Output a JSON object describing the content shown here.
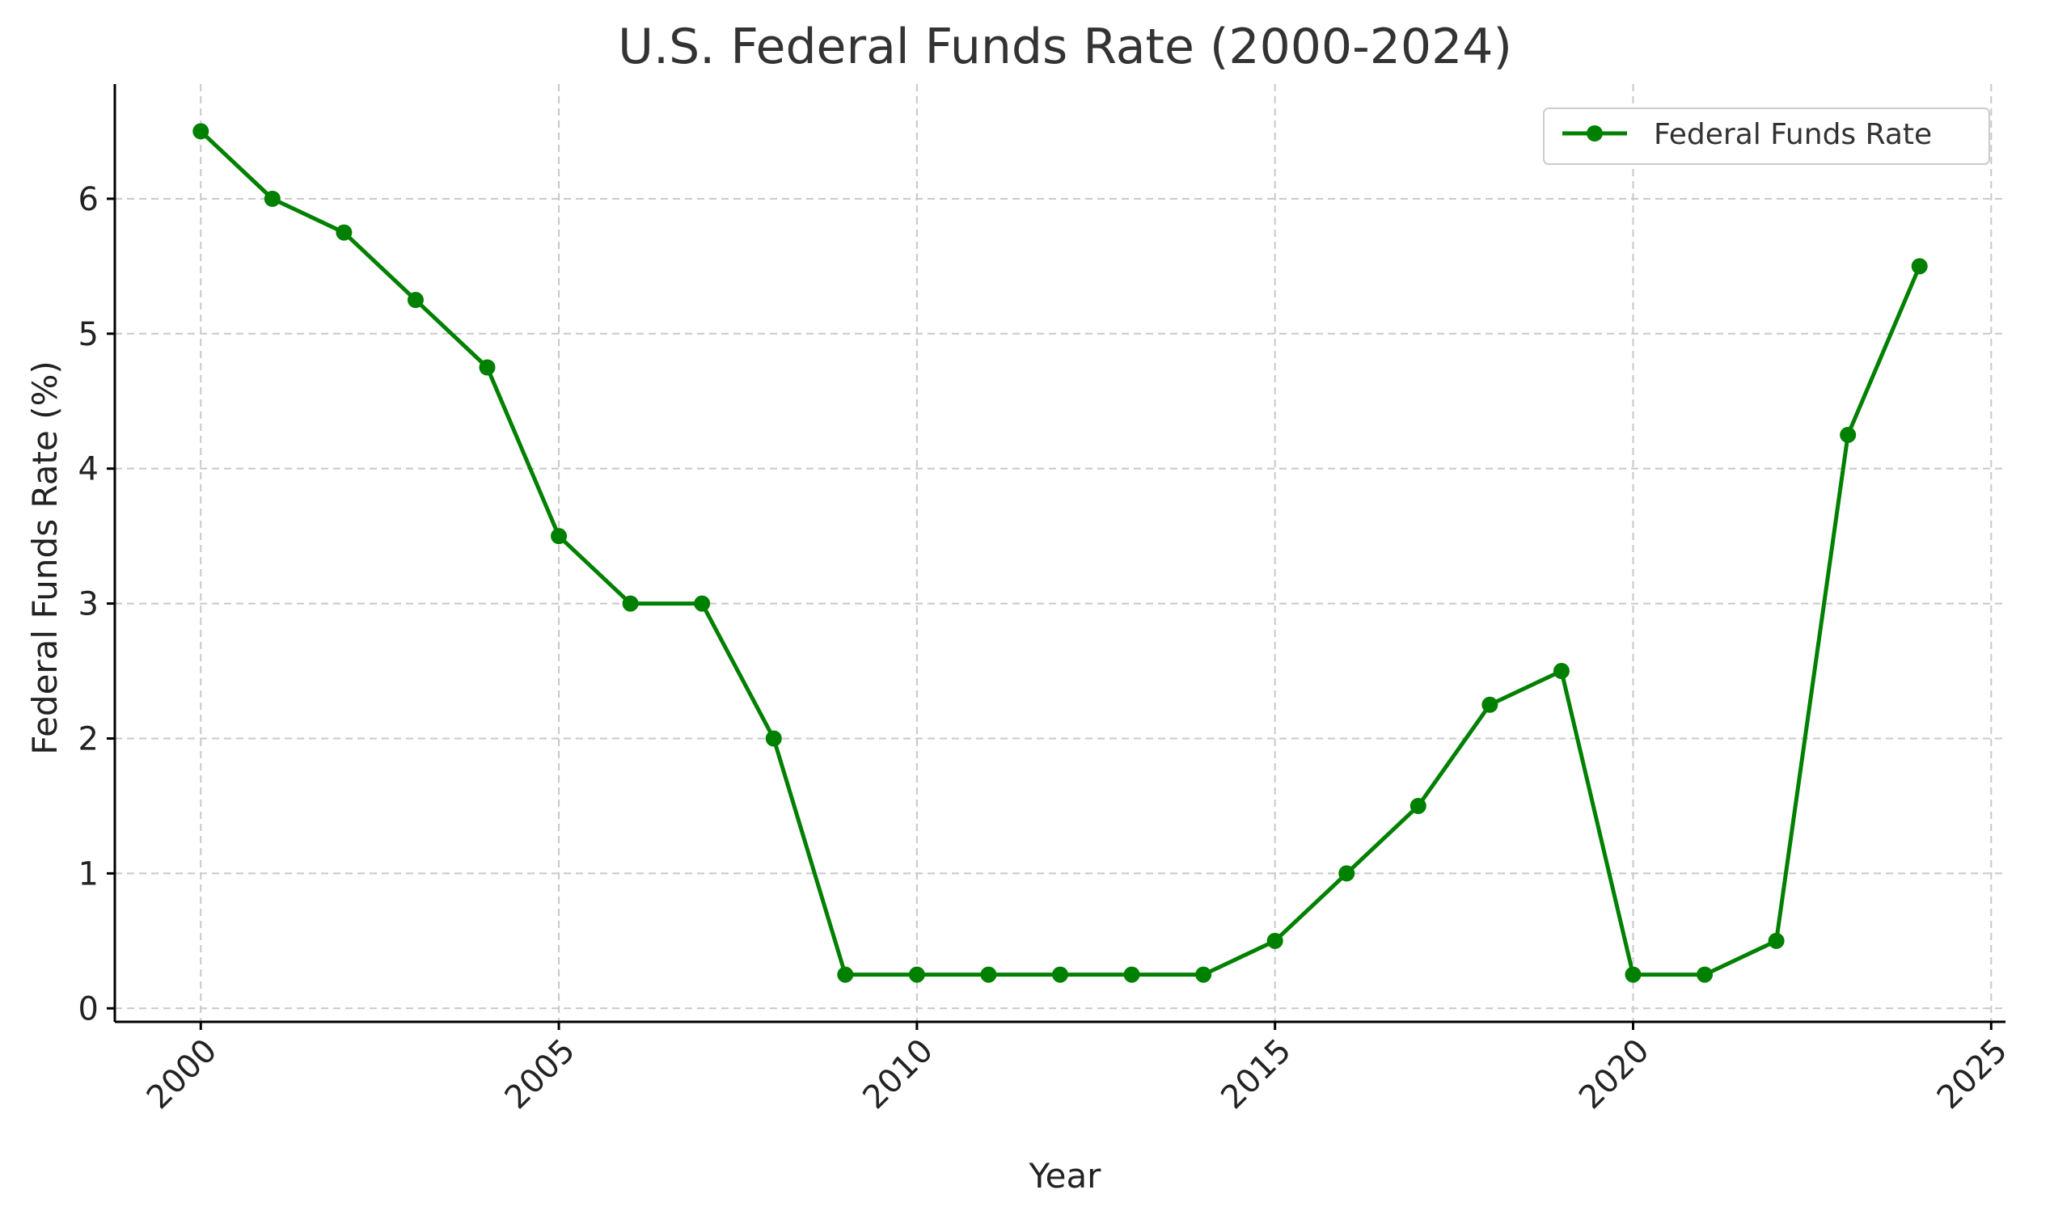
{
  "chart_data": {
    "type": "line",
    "title": "U.S. Federal Funds Rate (2000-2024)",
    "xlabel": "Year",
    "ylabel": "Federal Funds Rate (%)",
    "x": [
      2000,
      2001,
      2002,
      2003,
      2004,
      2005,
      2006,
      2007,
      2008,
      2009,
      2010,
      2011,
      2012,
      2013,
      2014,
      2015,
      2016,
      2017,
      2018,
      2019,
      2020,
      2021,
      2022,
      2023,
      2024
    ],
    "series": [
      {
        "name": "Federal Funds Rate",
        "color": "#008000",
        "marker": "circle",
        "values": [
          6.5,
          6.0,
          5.75,
          5.25,
          4.75,
          3.5,
          3.0,
          3.0,
          2.0,
          0.25,
          0.25,
          0.25,
          0.25,
          0.25,
          0.25,
          0.5,
          1.0,
          1.5,
          2.25,
          2.5,
          0.25,
          0.25,
          0.5,
          4.25,
          5.5
        ]
      }
    ],
    "xlim": [
      1998.8,
      2025.2
    ],
    "ylim": [
      -0.1,
      6.85
    ],
    "xticks": [
      "2000",
      "2005",
      "2010",
      "2015",
      "2020",
      "2025"
    ],
    "yticks": [
      "0",
      "1",
      "2",
      "3",
      "4",
      "5",
      "6"
    ],
    "xtick_rotation": 45,
    "grid": true,
    "legend": "top-right"
  }
}
